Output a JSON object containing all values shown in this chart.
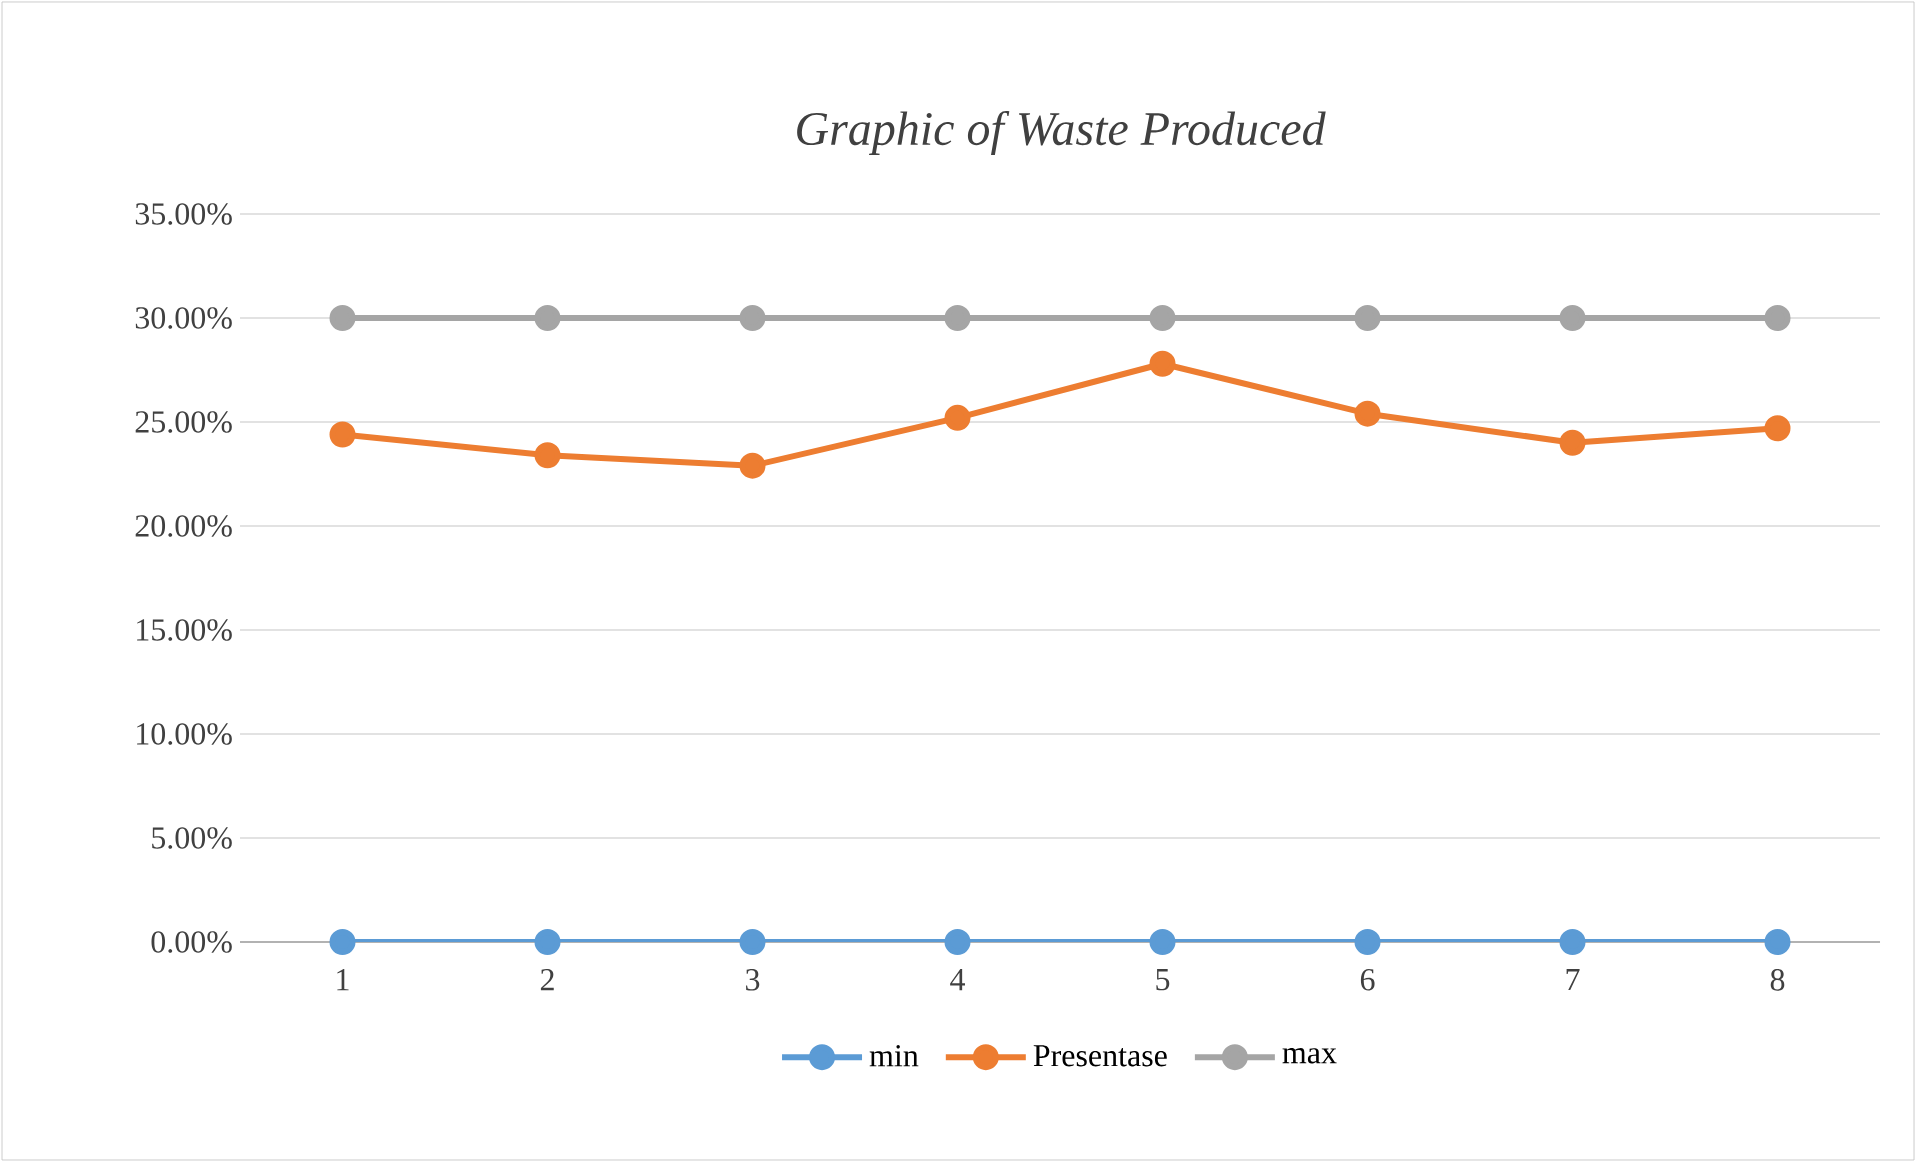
{
  "chart_data": {
    "type": "line",
    "title": "Graphic of Waste Produced",
    "categories": [
      "1",
      "2",
      "3",
      "4",
      "5",
      "6",
      "7",
      "8"
    ],
    "series": [
      {
        "name": "min",
        "color": "#5b9bd5",
        "values": [
          0,
          0,
          0,
          0,
          0,
          0,
          0,
          0
        ]
      },
      {
        "name": "Presentase",
        "color": "#ed7d31",
        "values": [
          24.4,
          23.4,
          22.9,
          25.2,
          27.8,
          25.4,
          24.0,
          24.7
        ]
      },
      {
        "name": "max",
        "color": "#a5a5a5",
        "values": [
          30,
          30,
          30,
          30,
          30,
          30,
          30,
          30
        ]
      }
    ],
    "ylim": [
      0,
      35
    ],
    "yticks": [
      {
        "value": 0,
        "label": "0.00%"
      },
      {
        "value": 5,
        "label": "5.00%"
      },
      {
        "value": 10,
        "label": "10.00%"
      },
      {
        "value": 15,
        "label": "15.00%"
      },
      {
        "value": 20,
        "label": "20.00%"
      },
      {
        "value": 25,
        "label": "25.00%"
      },
      {
        "value": 30,
        "label": "30.00%"
      },
      {
        "value": 35,
        "label": "35.00%"
      }
    ],
    "grid": "y",
    "legend": "bottom",
    "marker": "circle",
    "line_style": "solid"
  }
}
